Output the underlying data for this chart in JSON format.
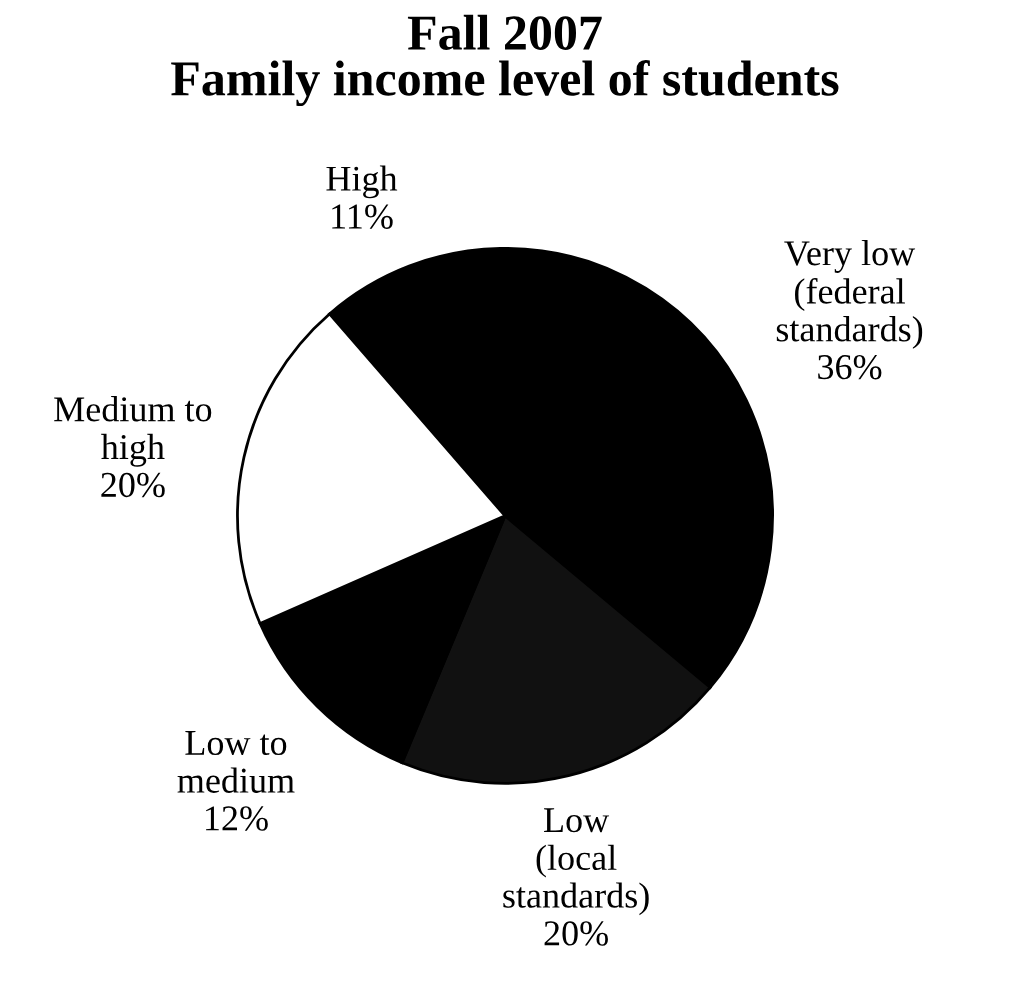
{
  "chart_data": {
    "type": "pie",
    "title": "Fall 2007\nFamily income level of students",
    "categories": [
      "High",
      "Very low\n(federal\nstandards)",
      "Low\n(local\nstandards)",
      "Low to\nmedium",
      "Medium to\nhigh"
    ],
    "values": [
      11,
      36,
      20,
      12,
      20
    ],
    "value_labels": [
      "11%",
      "36%",
      "20%",
      "12%",
      "20%"
    ],
    "colors": [
      "#000000",
      "#000000",
      "#111111",
      "#000000",
      "#ffffff"
    ]
  }
}
